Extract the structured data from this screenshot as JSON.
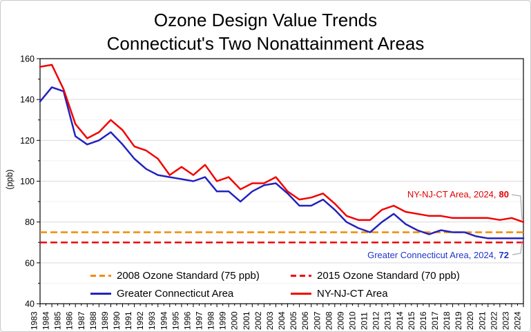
{
  "figure": {
    "background": "#FFFFFF",
    "border_color": "#C8C8C8"
  },
  "chart_data": {
    "type": "line",
    "title": "Ozone Design Value Trends",
    "subtitle": "Connecticut's Two Nonattainment Areas",
    "ylabel": "(ppb)",
    "xlabel": "",
    "ylim": [
      40,
      160
    ],
    "y_major_step": 20,
    "y_minor_step": 10,
    "grid": "horizontal",
    "legend_position": "bottom-inside",
    "x": [
      1983,
      1984,
      1985,
      1986,
      1987,
      1988,
      1989,
      1990,
      1991,
      1992,
      1993,
      1994,
      1995,
      1996,
      1997,
      1998,
      1999,
      2000,
      2001,
      2002,
      2003,
      2004,
      2005,
      2006,
      2007,
      2008,
      2009,
      2010,
      2011,
      2012,
      2013,
      2014,
      2015,
      2016,
      2017,
      2018,
      2019,
      2020,
      2021,
      2022,
      2023,
      2024
    ],
    "series": [
      {
        "name": "Greater Connecticut Area",
        "color": "#2222BE",
        "line_style": "solid",
        "values": [
          139,
          146,
          144,
          122,
          118,
          120,
          124,
          118,
          111,
          106,
          103,
          102,
          101,
          100,
          102,
          95,
          95,
          90,
          95,
          98,
          99,
          94,
          88,
          88,
          91,
          86,
          80,
          77,
          75,
          80,
          84,
          79,
          76,
          74,
          76,
          75,
          75,
          73,
          72,
          72,
          72,
          72
        ]
      },
      {
        "name": "NY-NJ-CT Area",
        "color": "#F20000",
        "line_style": "solid",
        "values": [
          156,
          157,
          145,
          128,
          121,
          124,
          130,
          125,
          117,
          115,
          111,
          103,
          107,
          103,
          108,
          100,
          102,
          96,
          99,
          99,
          102,
          95,
          91,
          92,
          94,
          89,
          83,
          81,
          81,
          86,
          88,
          85,
          84,
          83,
          83,
          82,
          82,
          82,
          82,
          81,
          82,
          80
        ]
      }
    ],
    "reference_lines": [
      {
        "name": "2008 Ozone Standard (75 ppb)",
        "value": 75,
        "color": "#F28C00",
        "line_style": "dashed"
      },
      {
        "name": "2015 Ozone Standard (70 ppb)",
        "value": 70,
        "color": "#F20000",
        "line_style": "dashed"
      }
    ],
    "annotations": [
      {
        "label": "NY-NJ-CT Area, 2024,",
        "value": 80,
        "color": "#E00000"
      },
      {
        "label": "Greater Connecticut Area, 2024,",
        "value": 72,
        "color": "#2233CC"
      }
    ],
    "callout_color": "#ABABAB"
  }
}
